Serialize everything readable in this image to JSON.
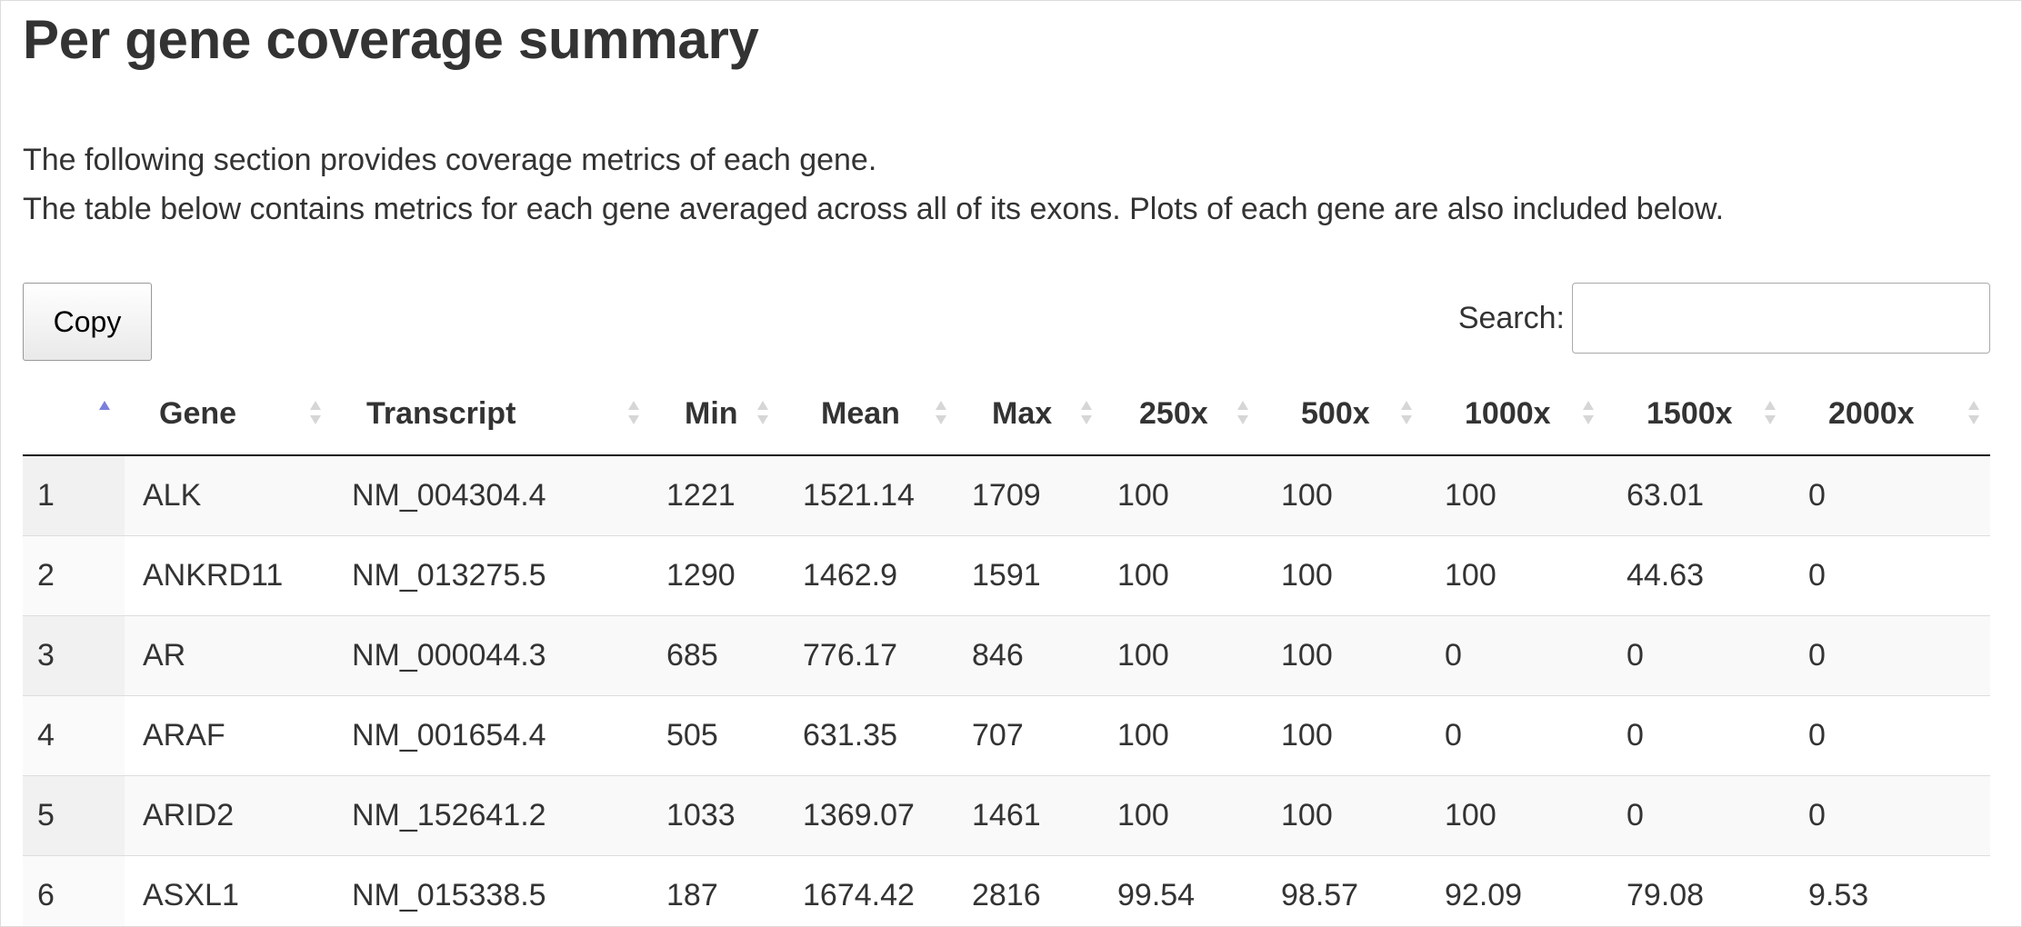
{
  "page": {
    "title": "Per gene coverage summary",
    "description_line1": "The following section provides coverage metrics of each gene.",
    "description_line2": "The table below contains metrics for each gene averaged across all of its exons. Plots of each gene are also included below."
  },
  "toolbar": {
    "copy_label": "Copy",
    "search_label": "Search:",
    "search_value": "",
    "search_placeholder": ""
  },
  "table": {
    "columns": [
      "",
      "Gene",
      "Transcript",
      "Min",
      "Mean",
      "Max",
      "250x",
      "500x",
      "1000x",
      "1500x",
      "2000x"
    ],
    "sorted_column": 0,
    "sort_direction": "ascending",
    "rows": [
      [
        "1",
        "ALK",
        "NM_004304.4",
        "1221",
        "1521.14",
        "1709",
        "100",
        "100",
        "100",
        "63.01",
        "0"
      ],
      [
        "2",
        "ANKRD11",
        "NM_013275.5",
        "1290",
        "1462.9",
        "1591",
        "100",
        "100",
        "100",
        "44.63",
        "0"
      ],
      [
        "3",
        "AR",
        "NM_000044.3",
        "685",
        "776.17",
        "846",
        "100",
        "100",
        "0",
        "0",
        "0"
      ],
      [
        "4",
        "ARAF",
        "NM_001654.4",
        "505",
        "631.35",
        "707",
        "100",
        "100",
        "0",
        "0",
        "0"
      ],
      [
        "5",
        "ARID2",
        "NM_152641.2",
        "1033",
        "1369.07",
        "1461",
        "100",
        "100",
        "100",
        "0",
        "0"
      ],
      [
        "6",
        "ASXL1",
        "NM_015338.5",
        "187",
        "1674.42",
        "2816",
        "99.54",
        "98.57",
        "92.09",
        "79.08",
        "9.53"
      ]
    ]
  },
  "colors": {
    "sort_active": "#7b7fdc",
    "sort_inactive": "#d6d6d6",
    "row_stripe": "#f9f9f9",
    "header_rule": "#111111"
  }
}
